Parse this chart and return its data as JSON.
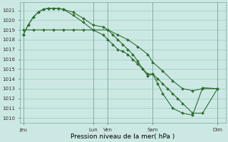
{
  "title": "Pression niveau de la mer( hPa )",
  "bg_color": "#cce8e4",
  "grid_color": "#99ccbb",
  "line_color": "#2d6e2d",
  "ylim": [
    1009.5,
    1021.8
  ],
  "yticks": [
    1010,
    1011,
    1012,
    1013,
    1014,
    1015,
    1016,
    1017,
    1018,
    1019,
    1020,
    1021
  ],
  "xlim": [
    -0.3,
    20.3
  ],
  "xtick_labels": [
    "Jeu",
    "Lun",
    "Ven",
    "Sam",
    "Dim"
  ],
  "xtick_positions": [
    0,
    7,
    8.5,
    13,
    19.5
  ],
  "vlines": [
    0,
    7,
    8.5,
    13,
    19.5
  ],
  "series1_x": [
    0,
    1,
    2,
    3,
    4,
    5,
    6,
    7,
    8.5,
    9.5,
    10.5,
    11.5,
    12.5,
    13,
    14,
    15,
    16,
    17,
    18,
    19.5
  ],
  "series1_y": [
    1019.0,
    1019.0,
    1019.0,
    1019.0,
    1019.0,
    1019.0,
    1019.0,
    1019.0,
    1019.0,
    1018.5,
    1018.0,
    1017.3,
    1016.5,
    1015.7,
    1014.8,
    1013.8,
    1013.0,
    1012.8,
    1013.0,
    1013.0
  ],
  "series2_x": [
    0,
    0.5,
    1,
    1.5,
    2,
    2.5,
    3,
    3.5,
    4,
    5,
    6,
    7,
    8,
    8.5,
    9,
    9.5,
    10,
    10.5,
    11,
    11.5,
    12,
    12.5,
    13,
    13.5,
    14,
    14.5,
    15,
    15.5,
    16,
    17,
    18,
    19.5
  ],
  "series2_y": [
    1018.5,
    1019.5,
    1020.3,
    1020.8,
    1021.1,
    1021.2,
    1021.2,
    1021.2,
    1021.1,
    1020.8,
    1020.2,
    1019.5,
    1019.3,
    1019.0,
    1018.5,
    1018.0,
    1017.5,
    1017.0,
    1016.5,
    1015.8,
    1015.0,
    1014.3,
    1014.5,
    1014.0,
    1013.5,
    1013.0,
    1012.5,
    1012.0,
    1011.5,
    1010.5,
    1010.5,
    1013.0
  ],
  "series3_x": [
    0,
    0.5,
    1,
    1.5,
    2,
    2.5,
    3,
    3.5,
    4,
    5,
    6,
    7,
    8,
    8.5,
    9,
    9.5,
    10,
    10.5,
    11,
    11.5,
    12,
    12.5,
    13,
    13.5,
    14,
    15,
    16,
    17,
    18,
    19.5
  ],
  "series3_y": [
    1018.5,
    1019.5,
    1020.3,
    1020.8,
    1021.1,
    1021.2,
    1021.2,
    1021.2,
    1021.1,
    1020.5,
    1019.8,
    1019.0,
    1018.5,
    1018.0,
    1017.5,
    1017.0,
    1016.8,
    1016.5,
    1016.0,
    1015.5,
    1015.0,
    1014.5,
    1014.5,
    1013.5,
    1012.5,
    1011.0,
    1010.5,
    1010.3,
    1013.1,
    1013.0
  ],
  "marker_size": 2.0,
  "line_width": 0.8,
  "tick_fontsize": 5.0,
  "xlabel_fontsize": 6.5
}
